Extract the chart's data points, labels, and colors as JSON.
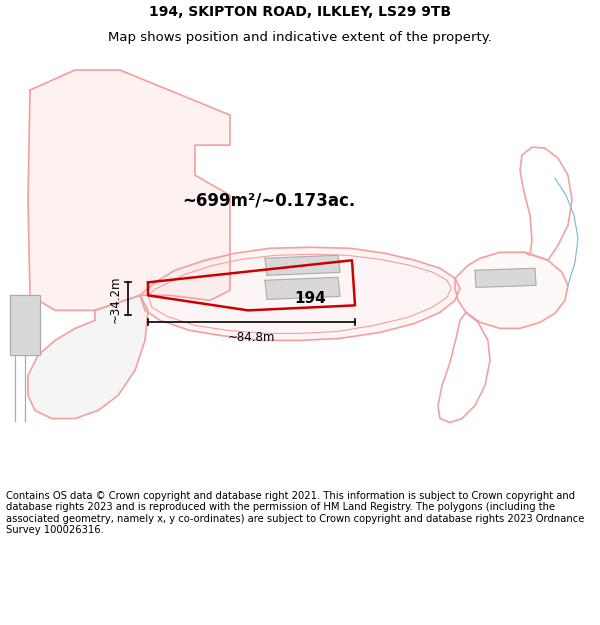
{
  "title": "194, SKIPTON ROAD, ILKLEY, LS29 9TB",
  "subtitle": "Map shows position and indicative extent of the property.",
  "footer": "Contains OS data © Crown copyright and database right 2021. This information is subject to Crown copyright and database rights 2023 and is reproduced with the permission of HM Land Registry. The polygons (including the associated geometry, namely x, y co-ordinates) are subject to Crown copyright and database rights 2023 Ordnance Survey 100026316.",
  "bg_color": "#ffffff",
  "map_bg": "#ffffff",
  "pink_color": "#f4a0a0",
  "red_color": "#cc0000",
  "gray_color": "#c8c8c8",
  "blue_color": "#7ab8d4",
  "area_text": "~699m²/~0.173ac.",
  "width_text": "~84.8m",
  "height_text": "~34.2m",
  "label_194": "194",
  "title_fontsize": 10,
  "subtitle_fontsize": 9.5,
  "footer_fontsize": 7.2
}
